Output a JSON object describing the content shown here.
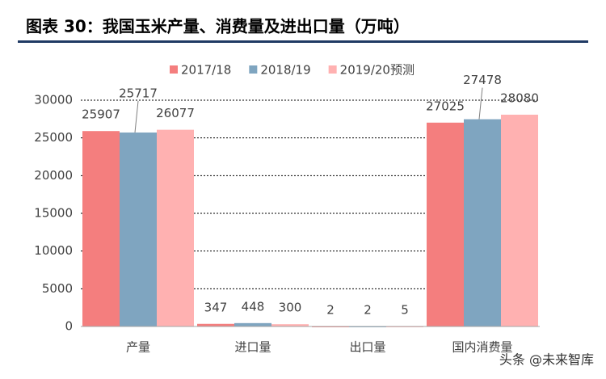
{
  "chart_data": {
    "type": "bar",
    "title": "图表 30：我国玉米产量、消费量及进出口量（万吨）",
    "categories": [
      "产量",
      "进口量",
      "出口量",
      "国内消费量"
    ],
    "series": [
      {
        "name": "2017/18",
        "color": "#f47e7e",
        "values": [
          25907,
          347,
          2,
          27025
        ]
      },
      {
        "name": "2018/19",
        "color": "#7fa5c0",
        "values": [
          25717,
          448,
          2,
          27478
        ]
      },
      {
        "name": "2019/20预测",
        "color": "#ffb1b1",
        "values": [
          26077,
          300,
          5,
          28080
        ]
      }
    ],
    "ylim": [
      0,
      30000
    ],
    "yticks": [
      0,
      5000,
      10000,
      15000,
      20000,
      25000,
      30000
    ],
    "grid": true,
    "legend": "top"
  },
  "watermark": "头条 @未来智库"
}
